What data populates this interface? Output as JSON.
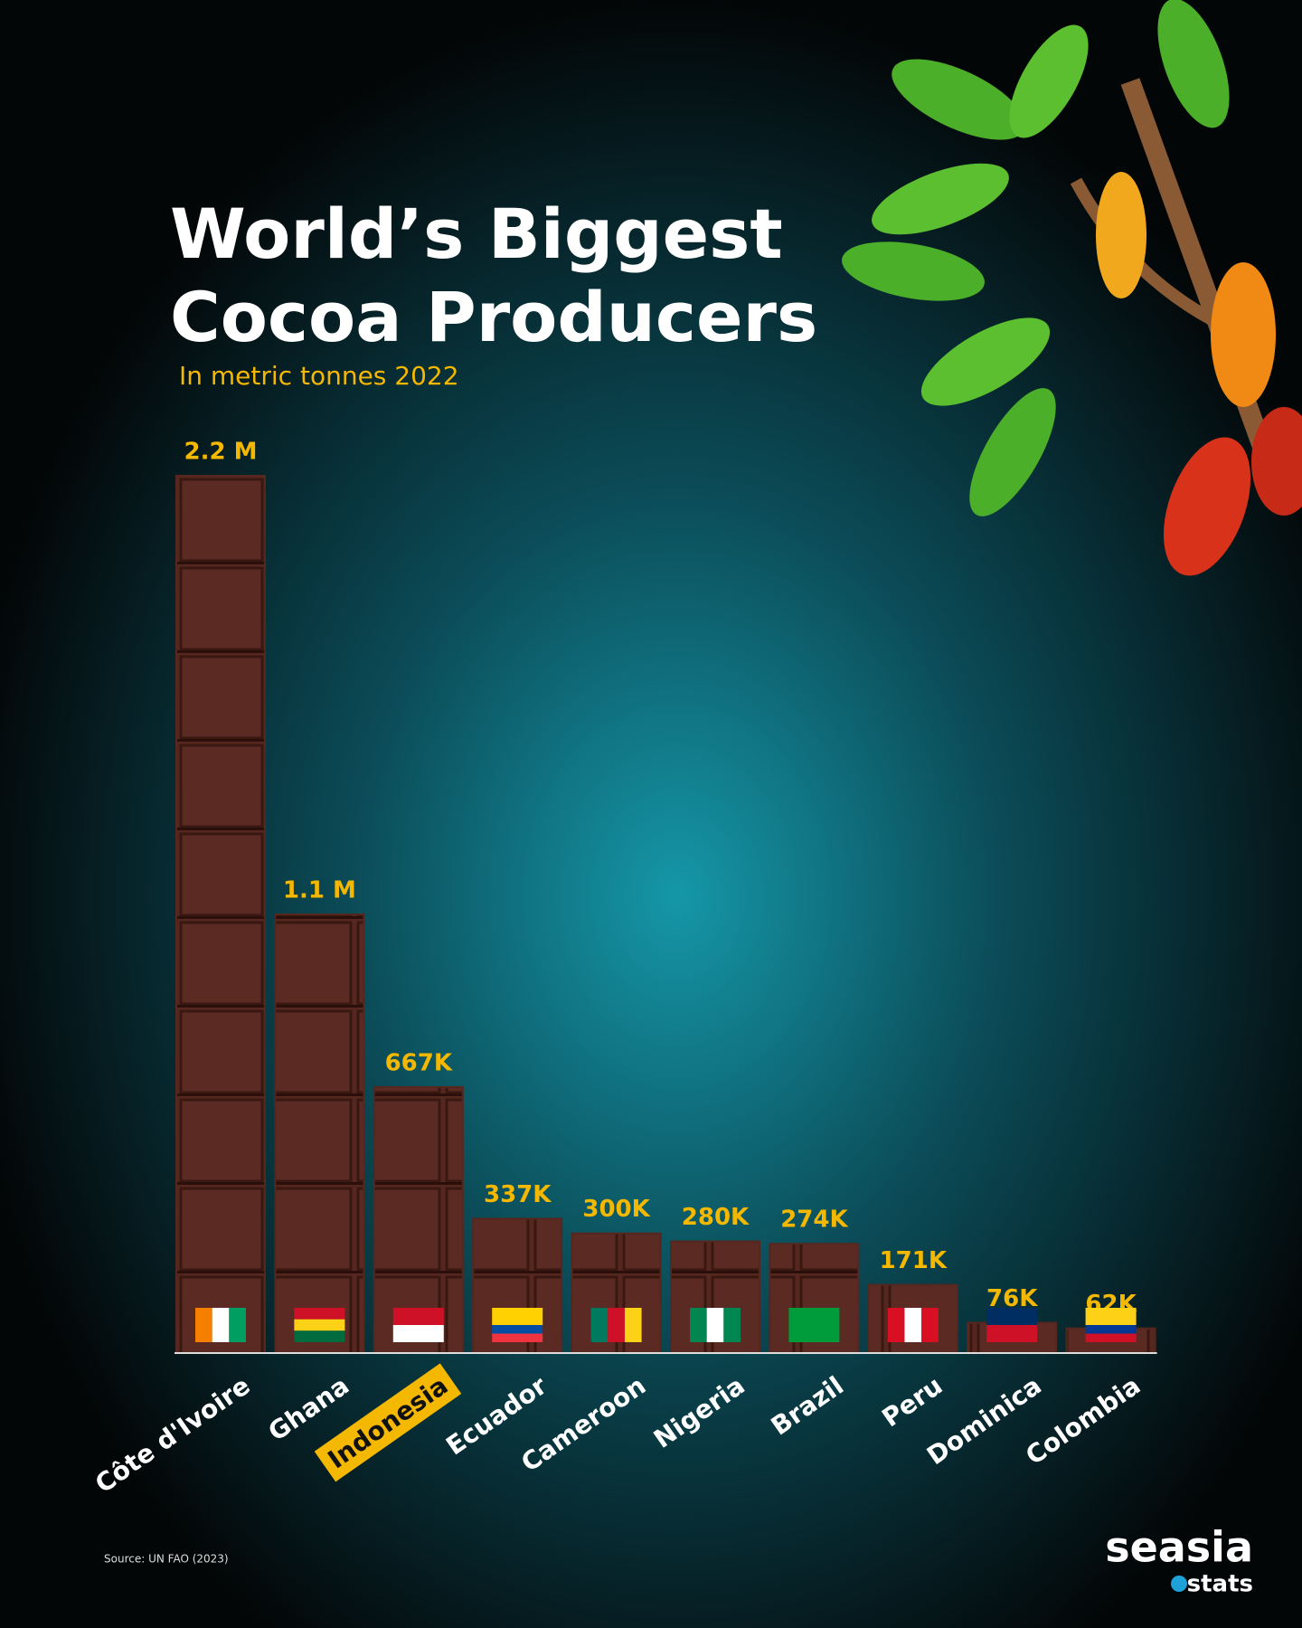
{
  "chart_data": {
    "type": "bar",
    "title": "World’s Biggest Cocoa Producers",
    "subtitle": "In metric tonnes 2022",
    "categories": [
      "Côte d'Ivoire",
      "Ghana",
      "Indonesia",
      "Ecuador",
      "Cameroon",
      "Nigeria",
      "Brazil",
      "Peru",
      "Dominica",
      "Colombia"
    ],
    "values": [
      2200000,
      1100000,
      667000,
      337000,
      300000,
      280000,
      274000,
      171000,
      76000,
      62000
    ],
    "value_labels": [
      "2.2 M",
      "1.1 M",
      "667K",
      "337K",
      "300K",
      "280K",
      "274K",
      "171K",
      "76K",
      "62K"
    ],
    "color": "#55271f",
    "label_color": "#f5b800",
    "highlight": "Indonesia",
    "ylim": [
      0,
      2200000
    ],
    "source": "Source: UN FAO (2023)",
    "brand": "seasia",
    "brand_sub": "stats"
  }
}
